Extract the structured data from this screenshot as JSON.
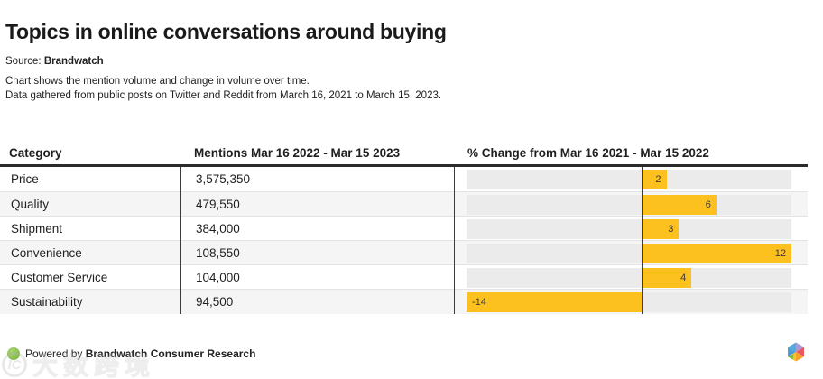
{
  "header": {
    "title": "Topics in online conversations around buying",
    "source_label": "Source:",
    "source_value": "Brandwatch",
    "description_line1": "Chart shows the mention volume and change in volume over time.",
    "description_line2": "Data gathered from public posts on Twitter and Reddit from March 16, 2021 to March 15, 2023."
  },
  "table": {
    "col_category": "Category",
    "col_mentions": "Mentions Mar 16 2022 - Mar 15 2023",
    "col_change": "% Change from Mar 16 2021 - Mar 15 2022"
  },
  "chart_data": {
    "type": "bar",
    "orientation": "horizontal",
    "title": "Topics in online conversations around buying",
    "categories": [
      "Price",
      "Quality",
      "Shipment",
      "Convenience",
      "Customer Service",
      "Sustainability"
    ],
    "series": [
      {
        "name": "Mentions Mar 16 2022 - Mar 15 2023",
        "values": [
          3575350,
          479550,
          384000,
          108550,
          104000,
          94500
        ],
        "display": [
          "3,575,350",
          "479,550",
          "384,000",
          "108,550",
          "104,000",
          "94,500"
        ]
      },
      {
        "name": "% Change from Mar 16 2021 - Mar 15 2022",
        "values": [
          2,
          6,
          3,
          12,
          4,
          -14
        ],
        "display": [
          "2",
          "6",
          "3",
          "12",
          "4",
          "-14"
        ]
      }
    ],
    "xlim": [
      -14,
      12
    ],
    "grid": false,
    "legend": false,
    "bar_color": "#FCC11E",
    "track_color": "#EBEBEB"
  },
  "footer": {
    "powered_by": "Powered by ",
    "brand": "Brandwatch Consumer Research"
  },
  "watermark": {
    "logo_text": "IC",
    "text": "大数跨境"
  },
  "colors": {
    "accent_yellow": "#FCC11E",
    "track_gray": "#EBEBEB",
    "stripe_gray": "#F5F5F5",
    "header_rule": "#2b2b2b",
    "footer_green": "#7CBB45"
  }
}
